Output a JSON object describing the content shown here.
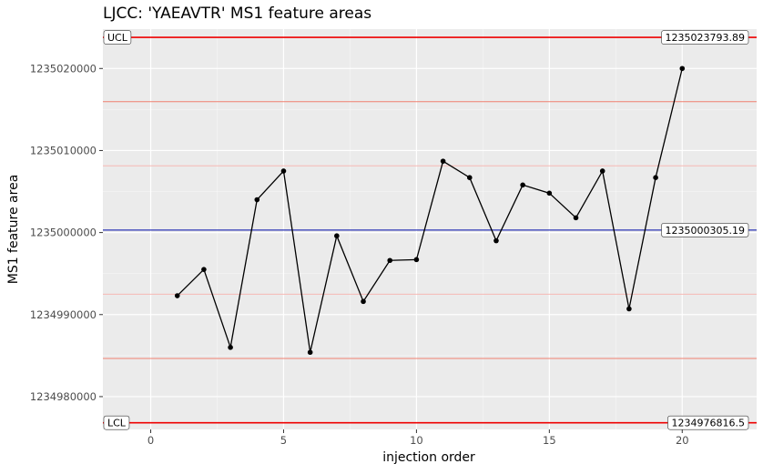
{
  "chart_data": {
    "type": "line",
    "title": "LJCC: 'YAEAVTR' MS1 feature areas",
    "xlabel": "injection order",
    "ylabel": "MS1 feature area",
    "xlim": [
      -1.8,
      22.8
    ],
    "ylim": [
      1234976000,
      1235024800
    ],
    "x_ticks": [
      0,
      5,
      10,
      15,
      20
    ],
    "y_ticks": [
      1234980000,
      1234990000,
      1235000000,
      1235010000,
      1235020000
    ],
    "grid": true,
    "series": [
      {
        "x": [
          1,
          2,
          3,
          4,
          5,
          6,
          7,
          8,
          9,
          10,
          11,
          12,
          13,
          14,
          15,
          16,
          17,
          18,
          19,
          20
        ],
        "values": [
          1234992300,
          1234995500,
          1234986000,
          1235004000,
          1235007500,
          1234985400,
          1234999600,
          1234991600,
          1234996600,
          1234996700,
          1235008700,
          1235006700,
          1234999000,
          1235005800,
          1235004800,
          1235001800,
          1235007500,
          1234990700,
          1235006700,
          1235020000
        ]
      }
    ],
    "reference_lines": [
      {
        "value": 1235023793.89,
        "label": "1235023793.89",
        "side_label": "UCL",
        "color": "#ee0000",
        "role": "limit"
      },
      {
        "value": 1235015956,
        "color": "#f08070",
        "role": "sigma2"
      },
      {
        "value": 1235008130,
        "color": "#f6b9b4",
        "role": "sigma1"
      },
      {
        "value": 1235000305.19,
        "label": "1235000305.19",
        "color": "#2b35b5",
        "role": "center"
      },
      {
        "value": 1234992480,
        "color": "#f6b9b4",
        "role": "sigma1"
      },
      {
        "value": 1234984655,
        "color": "#f08070",
        "role": "sigma2"
      },
      {
        "value": 1234976816.5,
        "label": "1234976816.5",
        "side_label": "LCL",
        "color": "#ee0000",
        "role": "limit"
      }
    ],
    "colors": {
      "panel": "#ebebeb",
      "grid_major": "#ffffff",
      "line": "#000000"
    }
  }
}
